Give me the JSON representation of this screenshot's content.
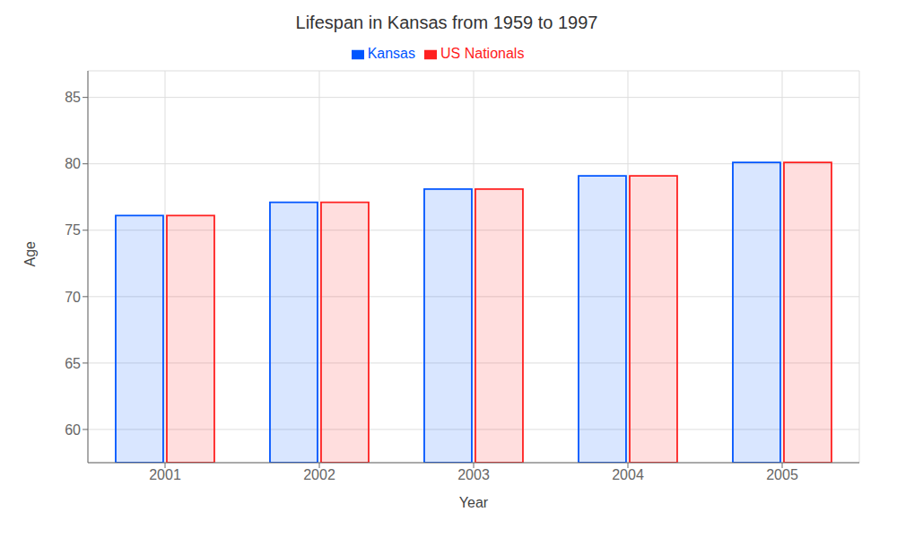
{
  "chart_data": {
    "type": "bar",
    "title": "Lifespan in Kansas from 1959 to 1997",
    "x_label": "Year",
    "y_label": "Age",
    "categories": [
      "2001",
      "2002",
      "2003",
      "2004",
      "2005"
    ],
    "series": [
      {
        "name": "Kansas",
        "color": "#0055ff",
        "values": [
          76.1,
          77.1,
          78.1,
          79.1,
          80.1
        ]
      },
      {
        "name": "US Nationals",
        "color": "#ff2020",
        "values": [
          76.1,
          77.1,
          78.1,
          79.1,
          80.1
        ]
      }
    ],
    "ylim": [
      57.5,
      87
    ],
    "yticks": [
      60,
      65,
      70,
      75,
      80,
      85
    ],
    "grid": true,
    "legend": "top"
  }
}
